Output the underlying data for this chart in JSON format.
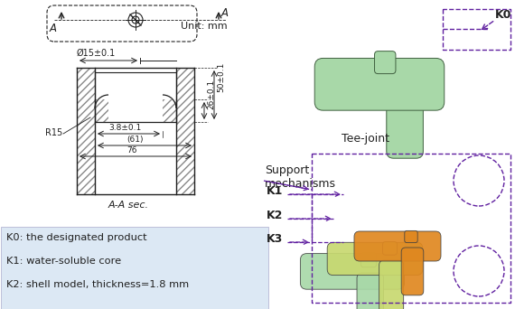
{
  "background_color": "#ffffff",
  "legend_lines": [
    "K0: the designated product",
    "K1: water-soluble core",
    "K2: shell model, thickness=1.8 mm"
  ],
  "colors": {
    "light_green": "#a8d8a8",
    "orange": "#e08820",
    "yellow_green": "#c8d870",
    "dark_line": "#202020",
    "purple_dash": "#6020a0",
    "hatch_color": "#888888",
    "legend_bg": "#dce8f4",
    "dim_line": "#333333"
  },
  "figsize": [
    5.7,
    3.42
  ],
  "dpi": 100
}
